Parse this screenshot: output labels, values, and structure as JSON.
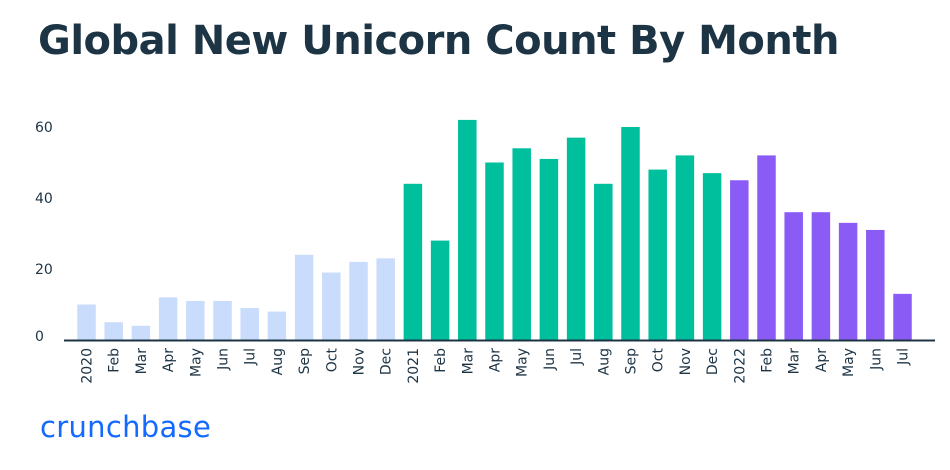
{
  "chart_data": {
    "type": "bar",
    "title": "Global New Unicorn Count By Month",
    "xlabel": "",
    "ylabel": "",
    "ylim": [
      0,
      62
    ],
    "yticks": [
      0,
      20,
      40,
      60
    ],
    "categories": [
      "2020",
      "Feb",
      "Mar",
      "Apr",
      "May",
      "Jun",
      "Jul",
      "Aug",
      "Sep",
      "Oct",
      "Nov",
      "Dec",
      "2021",
      "Feb",
      "Mar",
      "Apr",
      "May",
      "Jun",
      "Jul",
      "Aug",
      "Sep",
      "Oct",
      "Nov",
      "Dec",
      "2022",
      "Feb",
      "Mar",
      "Apr",
      "May",
      "Jun",
      "Jul"
    ],
    "values": [
      10,
      5,
      4,
      12,
      11,
      11,
      9,
      8,
      24,
      19,
      22,
      23,
      44,
      28,
      62,
      50,
      54,
      51,
      57,
      44,
      60,
      48,
      52,
      47,
      45,
      52,
      36,
      36,
      33,
      31,
      13
    ],
    "year_groups": [
      {
        "year": "2020",
        "count": 12,
        "color": "#c9dcfb"
      },
      {
        "year": "2021",
        "count": 12,
        "color": "#00bf9c"
      },
      {
        "year": "2022",
        "count": 7,
        "color": "#8a5cf5"
      }
    ],
    "grid": false
  },
  "brand": {
    "logo_text": "crunchbase",
    "color": "#146aff"
  }
}
